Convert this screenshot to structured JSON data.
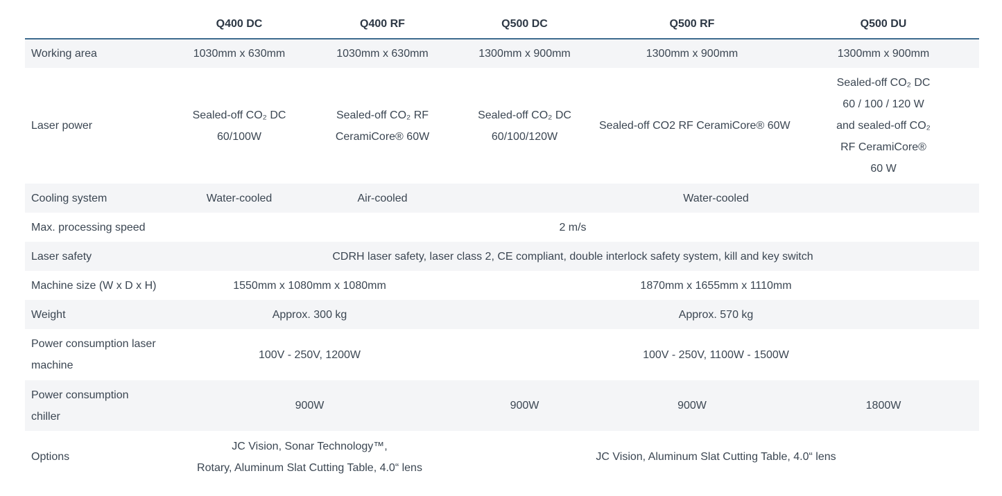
{
  "columns": [
    "",
    "Q400 DC",
    "Q400 RF",
    "Q500 DC",
    "Q500 RF",
    "Q500 DU"
  ],
  "rows": [
    {
      "label": [
        "Working area"
      ],
      "cells": [
        {
          "span": 1,
          "lines": [
            "1030mm x 630mm"
          ]
        },
        {
          "span": 1,
          "lines": [
            "1030mm x 630mm"
          ]
        },
        {
          "span": 1,
          "lines": [
            "1300mm x 900mm"
          ]
        },
        {
          "span": 1,
          "lines": [
            "1300mm x 900mm"
          ]
        },
        {
          "span": 1,
          "lines": [
            "1300mm x 900mm"
          ]
        }
      ]
    },
    {
      "label": [
        "Laser power"
      ],
      "cells": [
        {
          "span": 1,
          "lines": [
            "Sealed-off CO₂ DC",
            "60/100W"
          ]
        },
        {
          "span": 1,
          "lines": [
            "Sealed-off CO₂ RF",
            "CeramiCore® 60W"
          ]
        },
        {
          "span": 1,
          "lines": [
            "Sealed-off CO₂ DC",
            "60/100/120W"
          ]
        },
        {
          "span": 1,
          "lines": [
            "Sealed-off CO2 RF CeramiCore® 60W"
          ]
        },
        {
          "span": 1,
          "lines": [
            "Sealed-off CO₂ DC",
            "60 / 100 / 120 W",
            "and sealed-off CO₂",
            "RF CeramiCore®",
            "60 W"
          ]
        }
      ]
    },
    {
      "label": [
        "Cooling system"
      ],
      "cells": [
        {
          "span": 1,
          "lines": [
            "Water-cooled"
          ]
        },
        {
          "span": 1,
          "lines": [
            "Air-cooled"
          ]
        },
        {
          "span": 3,
          "lines": [
            "Water-cooled"
          ]
        }
      ]
    },
    {
      "label": [
        "Max. processing speed"
      ],
      "cells": [
        {
          "span": 5,
          "lines": [
            "2 m/s"
          ]
        }
      ]
    },
    {
      "label": [
        "Laser safety"
      ],
      "cells": [
        {
          "span": 5,
          "lines": [
            "CDRH laser safety, laser class 2, CE compliant, double interlock safety system, kill and key switch"
          ]
        }
      ]
    },
    {
      "label": [
        "Machine size (W x D x H)"
      ],
      "cells": [
        {
          "span": 2,
          "lines": [
            "1550mm x 1080mm x 1080mm"
          ]
        },
        {
          "span": 3,
          "lines": [
            "1870mm x 1655mm x 1110mm"
          ]
        }
      ]
    },
    {
      "label": [
        "Weight"
      ],
      "cells": [
        {
          "span": 2,
          "lines": [
            "Approx. 300 kg"
          ]
        },
        {
          "span": 3,
          "lines": [
            "Approx. 570 kg"
          ]
        }
      ]
    },
    {
      "label": [
        "Power consumption laser",
        "machine"
      ],
      "cells": [
        {
          "span": 2,
          "lines": [
            "100V - 250V, 1200W"
          ]
        },
        {
          "span": 3,
          "lines": [
            "100V - 250V, 1100W - 1500W"
          ]
        }
      ]
    },
    {
      "label": [
        "Power consumption",
        "chiller"
      ],
      "cells": [
        {
          "span": 2,
          "lines": [
            "900W"
          ]
        },
        {
          "span": 1,
          "lines": [
            "900W"
          ]
        },
        {
          "span": 1,
          "lines": [
            "900W"
          ]
        },
        {
          "span": 1,
          "lines": [
            "1800W"
          ]
        }
      ]
    },
    {
      "label": [
        "Options"
      ],
      "cells": [
        {
          "span": 2,
          "lines": [
            "JC Vision, Sonar Technology™,",
            "Rotary, Aluminum Slat Cutting Table, 4.0“ lens"
          ]
        },
        {
          "span": 3,
          "lines": [
            "JC Vision, Aluminum Slat Cutting Table, 4.0“ lens"
          ]
        }
      ]
    }
  ]
}
